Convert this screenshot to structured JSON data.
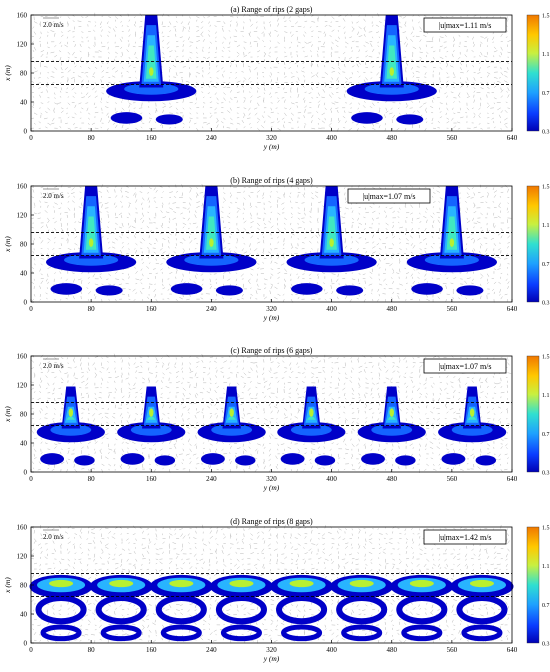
{
  "figure": {
    "ref_arrow_label": "2.0 m/s",
    "x_axis_label": "y (m)",
    "y_axis_label": "x (m)",
    "cbar_ticks": [
      "0.3",
      "0.7",
      "1.1",
      "1.5"
    ]
  },
  "chart_data": [
    {
      "type": "heatmap",
      "title": "(a) Range of rips (2 gaps)",
      "umax_label": "|u|max=1.11 m/s",
      "gaps": 2,
      "gap_centers_y": [
        160,
        480
      ],
      "umax": 1.11,
      "xlim": [
        0,
        640
      ],
      "ylim": [
        0,
        160
      ],
      "xticks": [
        0,
        80,
        160,
        240,
        320,
        400,
        480,
        560,
        640
      ],
      "yticks": [
        0,
        40,
        80,
        120,
        160
      ],
      "dashed_lines_x": [
        64,
        96
      ],
      "colorbar": {
        "min": 0.3,
        "max": 1.5,
        "ticks": [
          0.3,
          0.7,
          1.1,
          1.5
        ]
      }
    },
    {
      "type": "heatmap",
      "title": "(b) Range of rips (4 gaps)",
      "umax_label": "|u|max=1.07 m/s",
      "gaps": 4,
      "gap_centers_y": [
        80,
        240,
        400,
        560
      ],
      "umax": 1.07,
      "xlim": [
        0,
        640
      ],
      "ylim": [
        0,
        160
      ],
      "xticks": [
        0,
        80,
        160,
        240,
        320,
        400,
        480,
        560,
        640
      ],
      "yticks": [
        0,
        40,
        80,
        120,
        160
      ],
      "dashed_lines_x": [
        64,
        96
      ],
      "colorbar": {
        "min": 0.3,
        "max": 1.5,
        "ticks": [
          0.3,
          0.7,
          1.1,
          1.5
        ]
      }
    },
    {
      "type": "heatmap",
      "title": "(c) Range of rips (6 gaps)",
      "umax_label": "|u|max=1.07 m/s",
      "gaps": 6,
      "gap_centers_y": [
        53,
        160,
        267,
        373,
        480,
        587
      ],
      "umax": 1.07,
      "xlim": [
        0,
        640
      ],
      "ylim": [
        0,
        160
      ],
      "xticks": [
        0,
        80,
        160,
        240,
        320,
        400,
        480,
        560,
        640
      ],
      "yticks": [
        0,
        40,
        80,
        120,
        160
      ],
      "dashed_lines_x": [
        64,
        96
      ],
      "colorbar": {
        "min": 0.3,
        "max": 1.5,
        "ticks": [
          0.3,
          0.7,
          1.1,
          1.5
        ]
      }
    },
    {
      "type": "heatmap",
      "title": "(d) Range of rips (8 gaps)",
      "umax_label": "|u|max=1.42 m/s",
      "gaps": 8,
      "gap_centers_y": [
        40,
        120,
        200,
        280,
        360,
        440,
        520,
        600
      ],
      "umax": 1.42,
      "xlim": [
        0,
        640
      ],
      "ylim": [
        0,
        160
      ],
      "xticks": [
        0,
        80,
        160,
        240,
        320,
        400,
        480,
        560,
        640
      ],
      "yticks": [
        0,
        40,
        80,
        120,
        160
      ],
      "dashed_lines_x": [
        64,
        96
      ],
      "colorbar": {
        "min": 0.3,
        "max": 1.5,
        "ticks": [
          0.3,
          0.7,
          1.1,
          1.5
        ]
      }
    }
  ]
}
